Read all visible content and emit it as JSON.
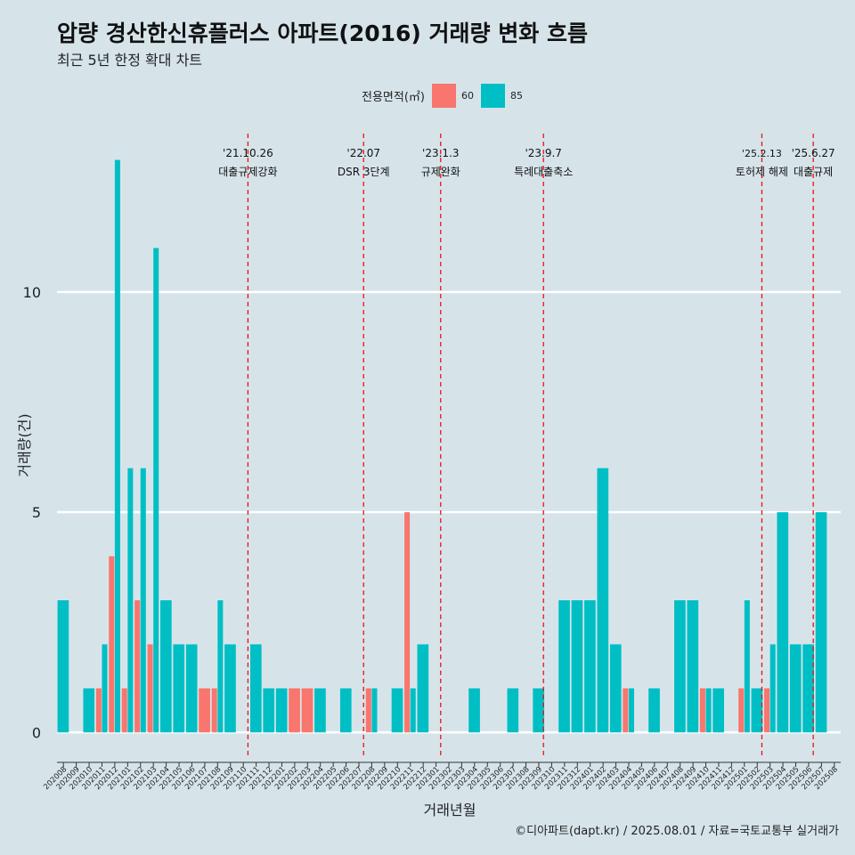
{
  "title": "압량 경산한신휴플러스 아파트(2016) 거래량 변화 흐름",
  "subtitle": "최근 5년 한정 확대 차트",
  "caption": "©디아파트(dapt.kr) / 2025.08.01 / 자료=국토교통부 실거래가",
  "legend": {
    "title": "전용면적(㎡)",
    "items": [
      {
        "label": "60",
        "color": "#f8766d"
      },
      {
        "label": "85",
        "color": "#00bfc4"
      }
    ]
  },
  "chart_data": {
    "type": "bar",
    "xlabel": "거래년월",
    "ylabel": "거래량(건)",
    "ylim": [
      -0.6,
      13.8
    ],
    "yticks": [
      0,
      5,
      10
    ],
    "grid": true,
    "legend_position": "top",
    "categories": [
      "202008",
      "202009",
      "202010",
      "202011",
      "202012",
      "202101",
      "202102",
      "202103",
      "202104",
      "202105",
      "202106",
      "202107",
      "202108",
      "202109",
      "202110",
      "202111",
      "202112",
      "202201",
      "202202",
      "202203",
      "202204",
      "202205",
      "202206",
      "202207",
      "202208",
      "202209",
      "202210",
      "202211",
      "202212",
      "202301",
      "202302",
      "202303",
      "202304",
      "202305",
      "202306",
      "202307",
      "202308",
      "202309",
      "202310",
      "202311",
      "202312",
      "202401",
      "202402",
      "202403",
      "202404",
      "202405",
      "202406",
      "202407",
      "202408",
      "202409",
      "202410",
      "202411",
      "202412",
      "202501",
      "202502",
      "202503",
      "202504",
      "202505",
      "202506",
      "202507",
      "202508"
    ],
    "series": [
      {
        "name": "60",
        "color": "#f8766d",
        "values": [
          0,
          0,
          0,
          1,
          4,
          1,
          3,
          2,
          0,
          0,
          0,
          1,
          1,
          0,
          0,
          0,
          0,
          0,
          1,
          1,
          0,
          0,
          0,
          0,
          1,
          0,
          0,
          5,
          0,
          0,
          0,
          0,
          0,
          0,
          0,
          0,
          0,
          0,
          0,
          0,
          0,
          0,
          0,
          0,
          1,
          0,
          0,
          0,
          0,
          0,
          1,
          0,
          0,
          1,
          0,
          1,
          0,
          0,
          0,
          0,
          0
        ]
      },
      {
        "name": "85",
        "color": "#00bfc4",
        "values": [
          3,
          0,
          1,
          2,
          13,
          6,
          6,
          11,
          3,
          2,
          2,
          0,
          3,
          2,
          0,
          2,
          1,
          1,
          0,
          0,
          1,
          0,
          1,
          0,
          1,
          0,
          1,
          1,
          2,
          0,
          0,
          0,
          1,
          0,
          0,
          1,
          0,
          1,
          0,
          3,
          3,
          3,
          6,
          2,
          1,
          0,
          1,
          0,
          3,
          3,
          1,
          1,
          0,
          3,
          1,
          2,
          5,
          2,
          2,
          5,
          0
        ]
      }
    ],
    "annotations": [
      {
        "date": "'21.10.26",
        "text": "대출규제강화",
        "after_category": "202110"
      },
      {
        "date": "'22.07",
        "text": "DSR 3단계",
        "after_category": "202207"
      },
      {
        "date": "'23.1.3",
        "text": "규제완화",
        "after_category": "202301"
      },
      {
        "date": "'23.9.7",
        "text": "특례대출축소",
        "after_category": "202309"
      },
      {
        "date": "'25.2.13",
        "text": "토허제 해제",
        "after_category": "202502"
      },
      {
        "date": "'25.6.27",
        "text": "대출규제",
        "after_category": "202506"
      }
    ]
  }
}
